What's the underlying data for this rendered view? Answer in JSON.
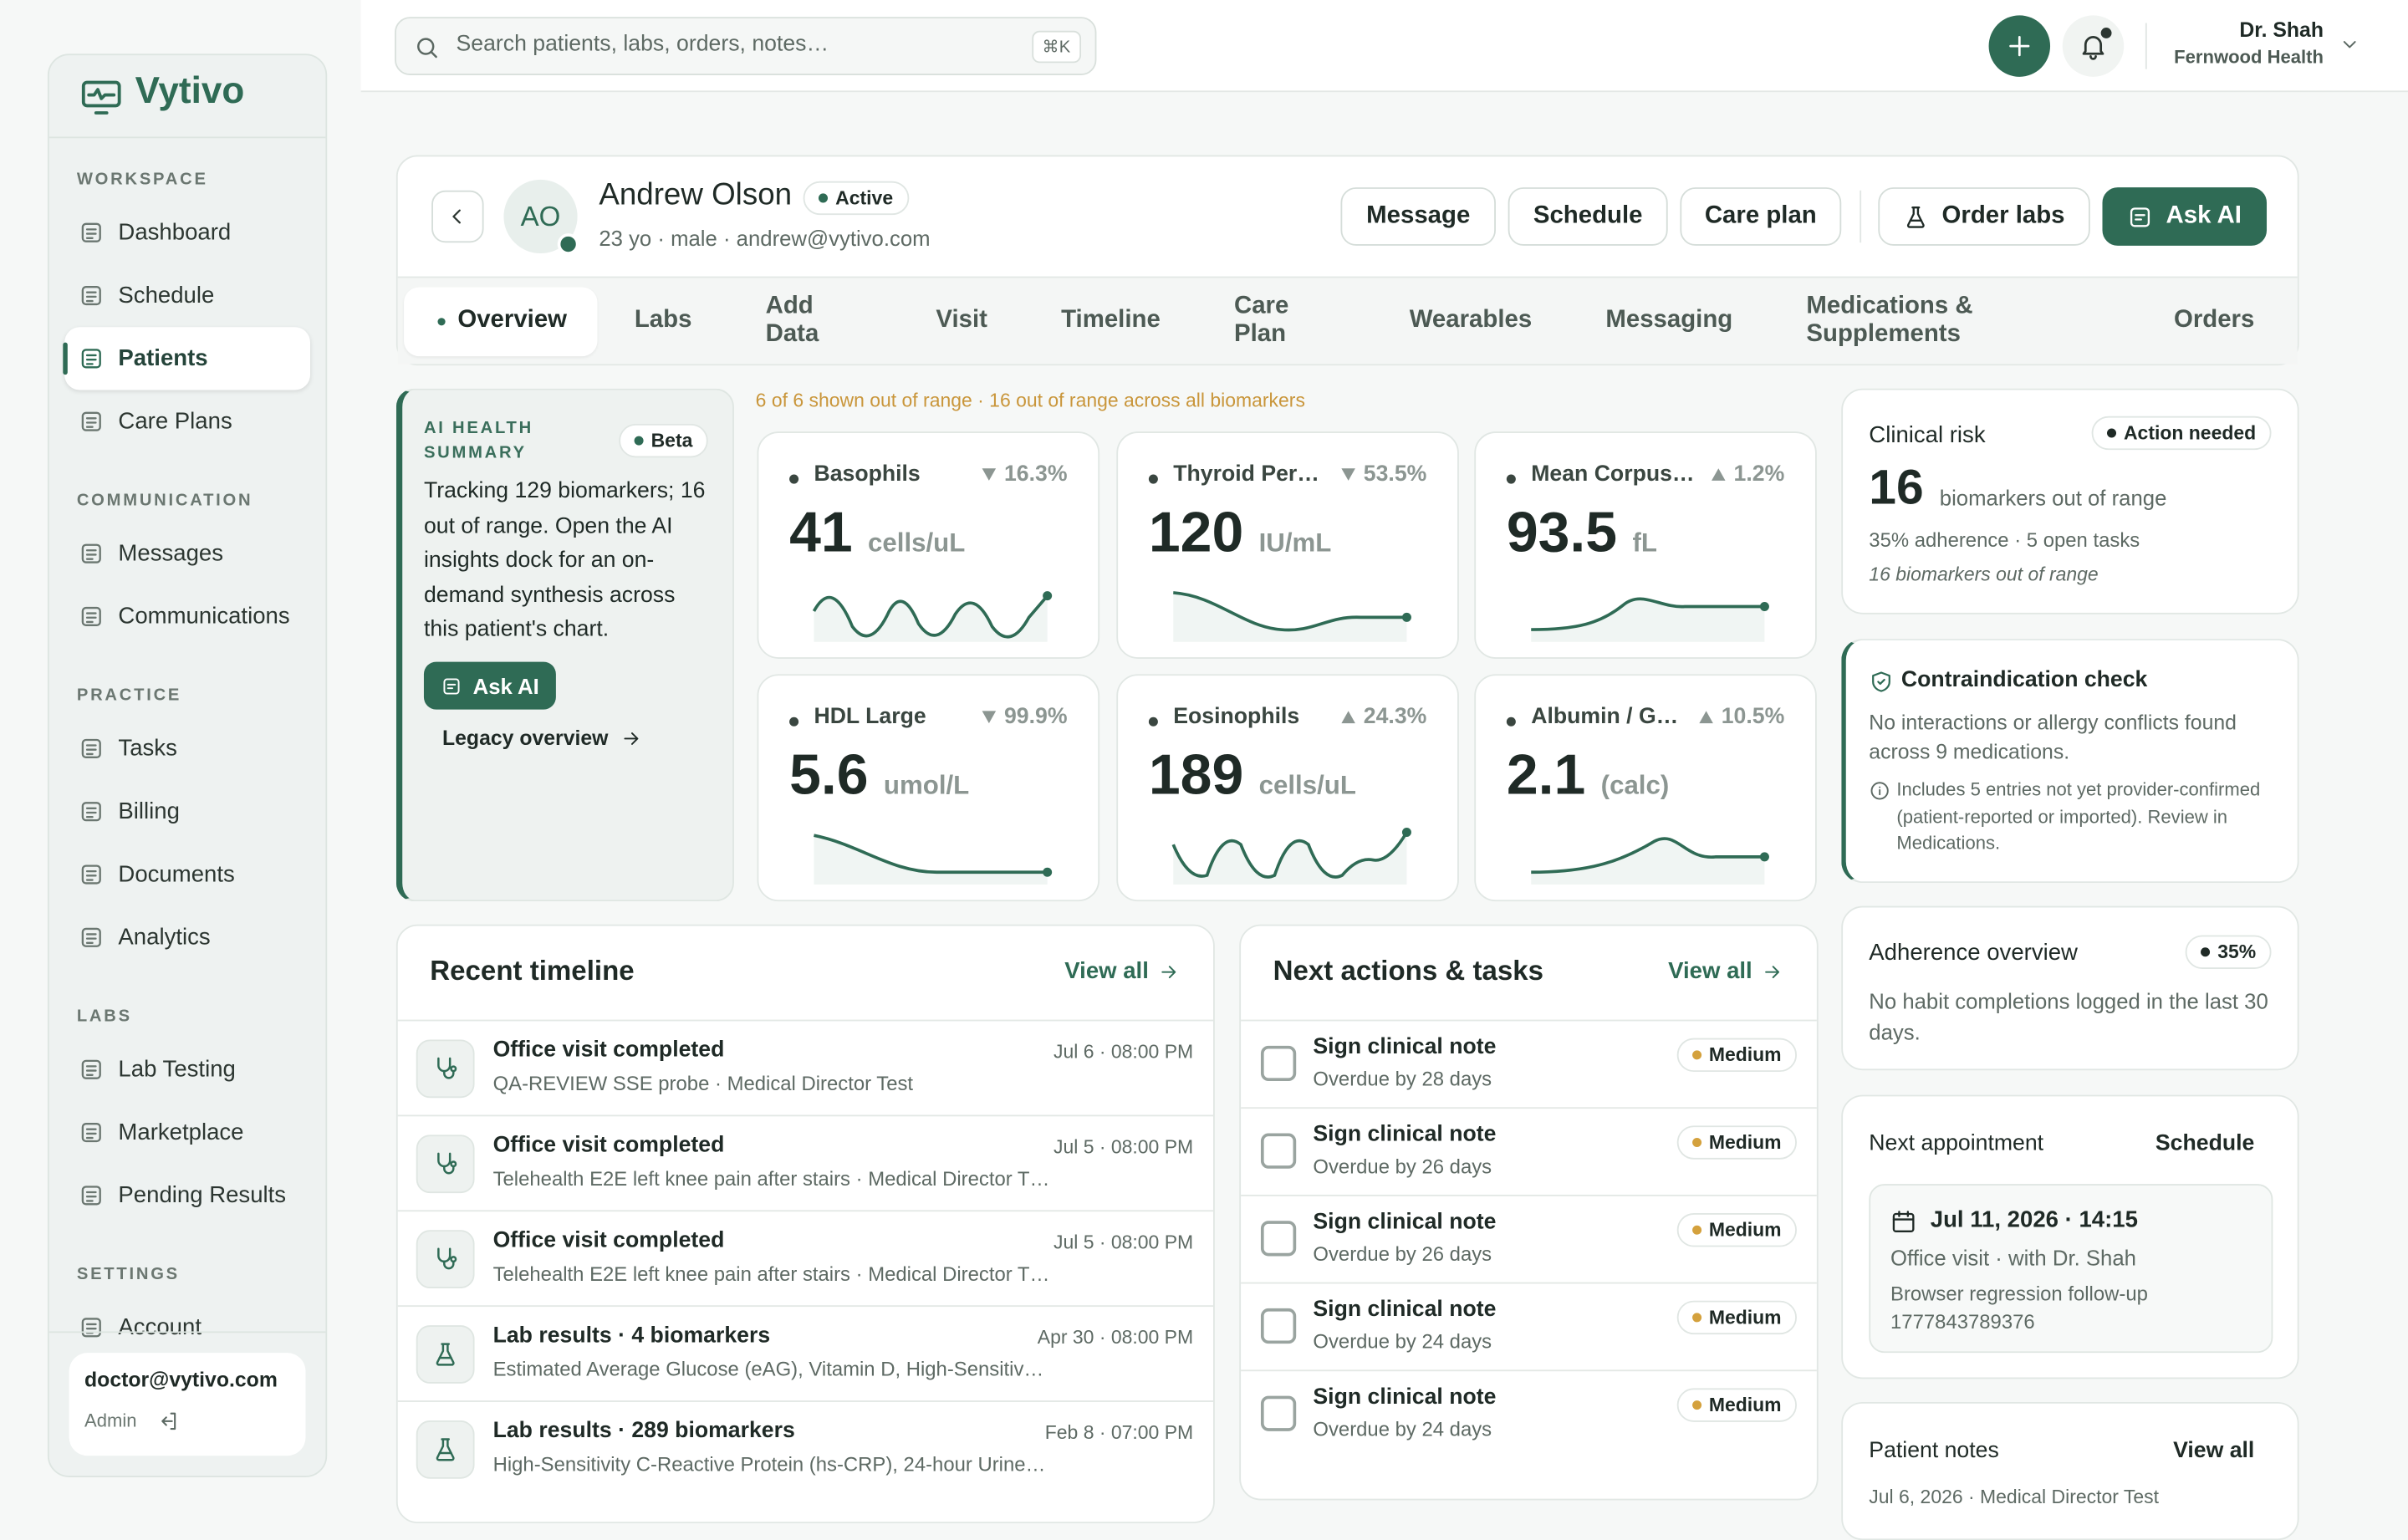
{
  "brand": "Vytivo",
  "search": {
    "placeholder": "Search patients, labs, orders, notes…",
    "shortcut": "⌘K"
  },
  "user": {
    "name": "Dr. Shah",
    "org": "Fernwood Health"
  },
  "nav": [
    {
      "section": "WORKSPACE",
      "items": [
        "Dashboard",
        "Schedule",
        "Patients",
        "Care Plans"
      ]
    },
    {
      "section": "COMMUNICATION",
      "items": [
        "Messages",
        "Communications"
      ]
    },
    {
      "section": "PRACTICE",
      "items": [
        "Tasks",
        "Billing",
        "Documents",
        "Analytics"
      ]
    },
    {
      "section": "LABS",
      "items": [
        "Lab Testing",
        "Marketplace",
        "Pending Results"
      ]
    },
    {
      "section": "SETTINGS",
      "items": [
        "Account"
      ]
    }
  ],
  "active_nav": "Patients",
  "account": {
    "email": "doctor@vytivo.com",
    "role": "Admin"
  },
  "patient": {
    "initials": "AO",
    "name": "Andrew Olson",
    "status": "Active",
    "details": "23 yo · male · andrew@vytivo.com"
  },
  "actions": [
    "Message",
    "Schedule",
    "Care plan",
    "Order labs",
    "Ask AI"
  ],
  "tabs": [
    "Overview",
    "Labs",
    "Add Data",
    "Visit",
    "Timeline",
    "Care Plan",
    "Wearables",
    "Messaging",
    "Medications & Supplements",
    "Orders"
  ],
  "ai_summary": {
    "label": "AI HEALTH SUMMARY",
    "badge": "Beta",
    "text": "Tracking 129 biomarkers; 16 out of range. Open the AI insights dock for an on-demand synthesis across this patient's chart.",
    "button": "Ask AI",
    "link": "Legacy overview"
  },
  "range_note": "6 of 6 shown out of range · 16 out of range across all biomarkers",
  "biomarkers": [
    {
      "name": "Basophils",
      "direction": "down",
      "change": "16.3%",
      "value": 41,
      "unit": "cells/uL"
    },
    {
      "name": "Thyroid Per…",
      "direction": "down",
      "change": "53.5%",
      "value": 120,
      "unit": "IU/mL"
    },
    {
      "name": "Mean Corpus…",
      "direction": "up",
      "change": "1.2%",
      "value": 93.5,
      "unit": "fL"
    },
    {
      "name": "HDL Large",
      "direction": "down",
      "change": "99.9%",
      "value": 5.6,
      "unit": "umol/L"
    },
    {
      "name": "Eosinophils",
      "direction": "up",
      "change": "24.3%",
      "value": 189,
      "unit": "cells/uL"
    },
    {
      "name": "Albumin / G…",
      "direction": "up",
      "change": "10.5%",
      "value": 2.1,
      "unit": "(calc)"
    }
  ],
  "clinical_risk": {
    "title": "Clinical risk",
    "badge": "Action needed",
    "count": 16,
    "count_label": "biomarkers out of range",
    "meta": "35% adherence · 5 open tasks",
    "note": "16 biomarkers out of range"
  },
  "contraindication": {
    "title": "Contraindication check",
    "text": "No interactions or allergy conflicts found across 9 medications.",
    "info": "Includes 5 entries not yet provider-confirmed (patient-reported or imported). Review in Medications."
  },
  "adherence": {
    "title": "Adherence overview",
    "badge": "35%",
    "text": "No habit completions logged in the last 30 days."
  },
  "appointment": {
    "title": "Next appointment",
    "link": "Schedule",
    "date": "Jul 11, 2026 · 14:15",
    "type": "Office visit · with Dr. Shah",
    "description": "Browser regression follow-up 1777843789376"
  },
  "notes": {
    "title": "Patient notes",
    "link": "View all",
    "first": "Jul 6, 2026 · Medical Director Test"
  },
  "timeline": {
    "title": "Recent timeline",
    "link": "View all",
    "items": [
      {
        "kind": "visit",
        "title": "Office visit completed",
        "subtitle": "QA-REVIEW SSE probe · Medical Director Test",
        "date": "Jul 6 · 08:00 PM"
      },
      {
        "kind": "visit",
        "title": "Office visit completed",
        "subtitle": "Telehealth E2E left knee pain after stairs · Medical Director T…",
        "date": "Jul 5 · 08:00 PM"
      },
      {
        "kind": "visit",
        "title": "Office visit completed",
        "subtitle": "Telehealth E2E left knee pain after stairs · Medical Director T…",
        "date": "Jul 5 · 08:00 PM"
      },
      {
        "kind": "lab",
        "title": "Lab results · 4 biomarkers",
        "subtitle": "Estimated Average Glucose (eAG), Vitamin D, High-Sensitiv…",
        "date": "Apr 30 · 08:00 PM"
      },
      {
        "kind": "lab",
        "title": "Lab results · 289 biomarkers",
        "subtitle": "High-Sensitivity C-Reactive Protein (hs-CRP), 24-hour Urine…",
        "date": "Feb 8 · 07:00 PM"
      }
    ]
  },
  "tasks": {
    "title": "Next actions & tasks",
    "link": "View all",
    "items": [
      {
        "title": "Sign clinical note",
        "subtitle": "Overdue by 28 days",
        "priority": "Medium"
      },
      {
        "title": "Sign clinical note",
        "subtitle": "Overdue by 26 days",
        "priority": "Medium"
      },
      {
        "title": "Sign clinical note",
        "subtitle": "Overdue by 26 days",
        "priority": "Medium"
      },
      {
        "title": "Sign clinical note",
        "subtitle": "Overdue by 24 days",
        "priority": "Medium"
      },
      {
        "title": "Sign clinical note",
        "subtitle": "Overdue by 24 days",
        "priority": "Medium"
      }
    ]
  }
}
